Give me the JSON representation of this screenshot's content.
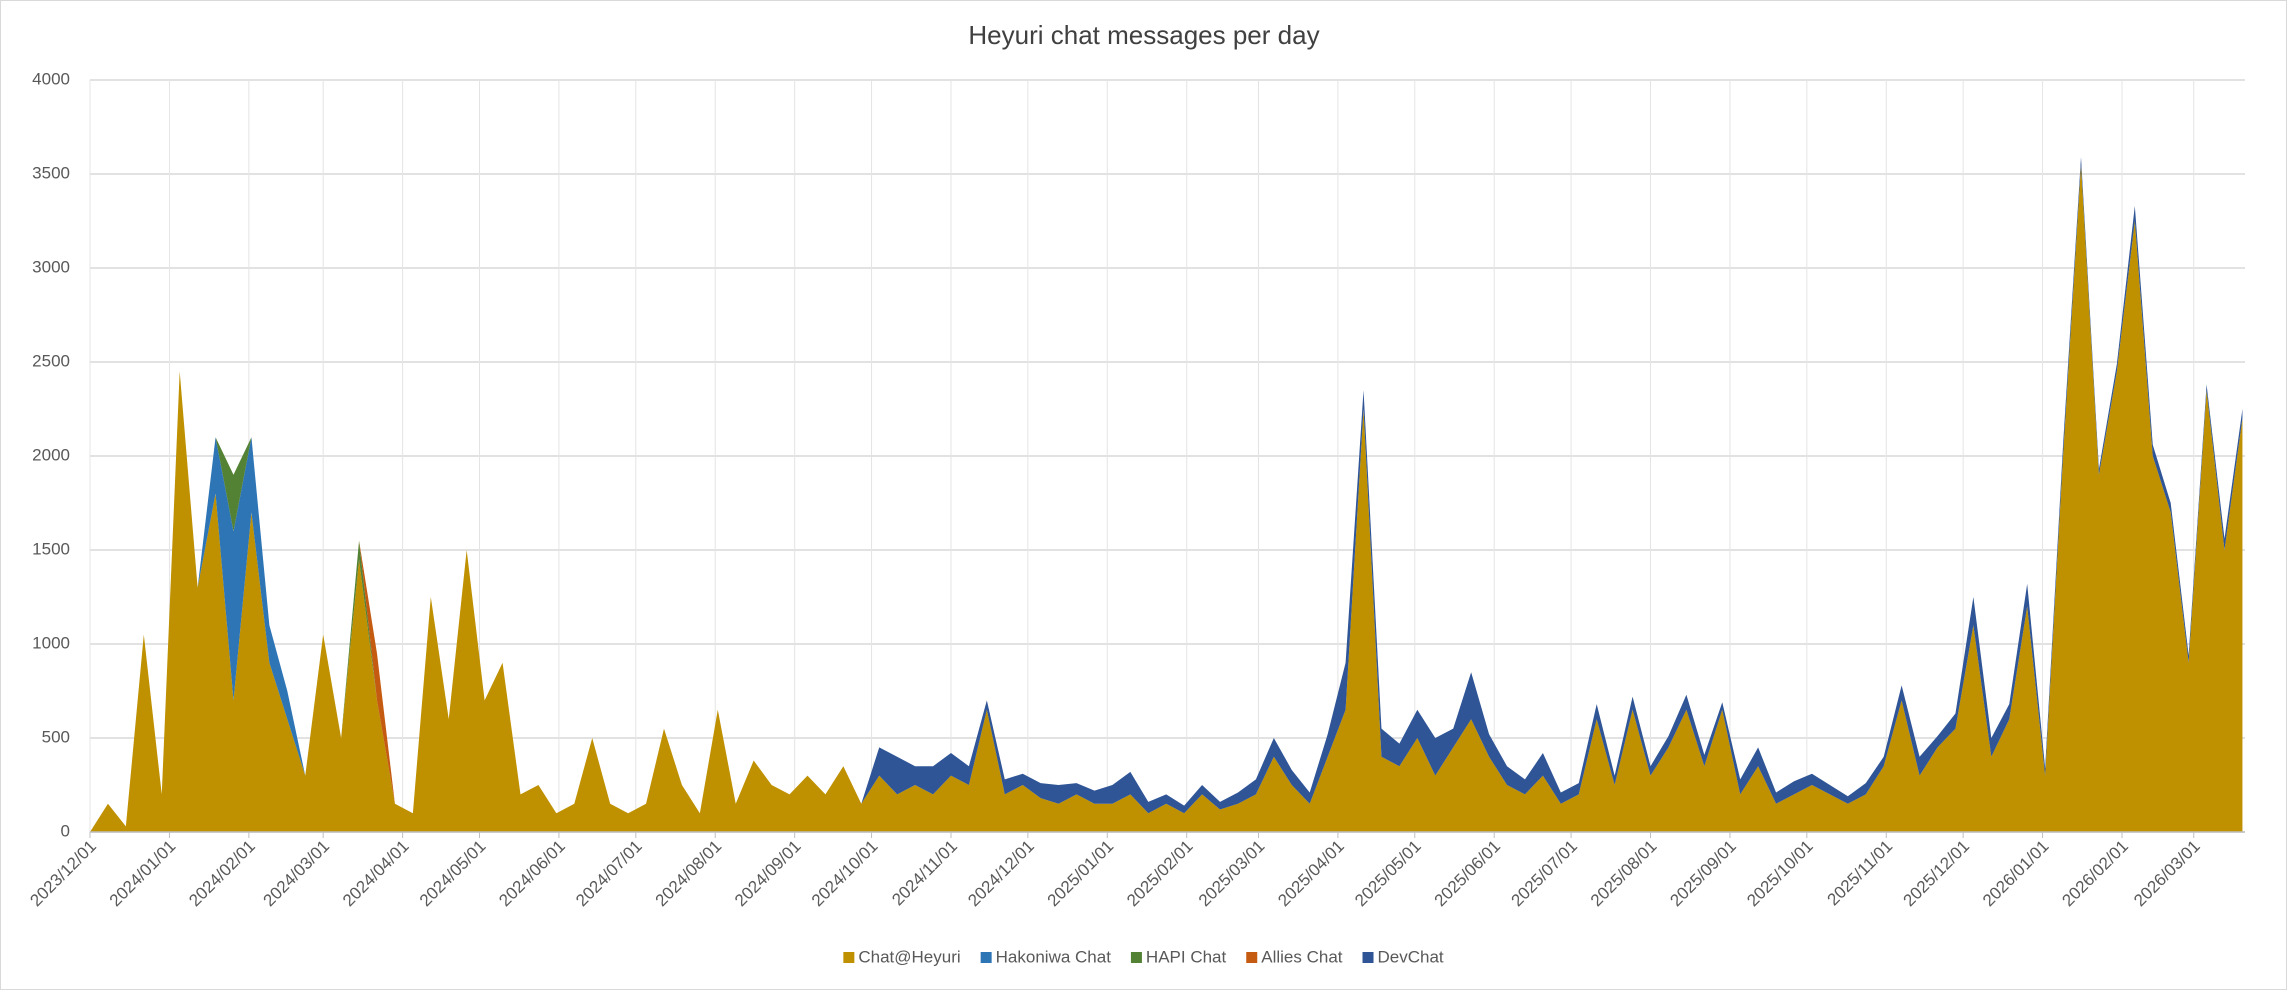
{
  "chart_data": {
    "type": "stacked-area",
    "title": "Heyuri chat messages per day",
    "x": [
      "2023/12/01",
      "2023/12/08",
      "2023/12/15",
      "2023/12/22",
      "2023/12/29",
      "2024/01/05",
      "2024/01/12",
      "2024/01/19",
      "2024/01/26",
      "2024/02/02",
      "2024/02/09",
      "2024/02/16",
      "2024/02/23",
      "2024/03/01",
      "2024/03/08",
      "2024/03/15",
      "2024/03/22",
      "2024/03/29",
      "2024/04/05",
      "2024/04/12",
      "2024/04/19",
      "2024/04/26",
      "2024/05/03",
      "2024/05/10",
      "2024/05/17",
      "2024/05/24",
      "2024/05/31",
      "2024/06/07",
      "2024/06/14",
      "2024/06/21",
      "2024/06/28",
      "2024/07/05",
      "2024/07/12",
      "2024/07/19",
      "2024/07/26",
      "2024/08/02",
      "2024/08/09",
      "2024/08/16",
      "2024/08/23",
      "2024/08/30",
      "2024/09/06",
      "2024/09/13",
      "2024/09/20",
      "2024/09/27",
      "2024/10/04",
      "2024/10/11",
      "2024/10/18",
      "2024/10/25",
      "2024/11/01",
      "2024/11/08",
      "2024/11/15",
      "2024/11/22",
      "2024/11/29",
      "2024/12/06",
      "2024/12/13",
      "2024/12/20",
      "2024/12/27",
      "2025/01/03",
      "2025/01/10",
      "2025/01/17",
      "2025/01/24",
      "2025/01/31",
      "2025/02/07",
      "2025/02/14",
      "2025/02/21",
      "2025/02/28",
      "2025/03/07",
      "2025/03/14",
      "2025/03/21",
      "2025/03/28",
      "2025/04/04",
      "2025/04/11",
      "2025/04/18",
      "2025/04/25",
      "2025/05/02",
      "2025/05/09",
      "2025/05/16",
      "2025/05/23",
      "2025/05/30",
      "2025/06/06",
      "2025/06/13",
      "2025/06/20",
      "2025/06/27",
      "2025/07/04",
      "2025/07/11",
      "2025/07/18",
      "2025/07/25",
      "2025/08/01",
      "2025/08/08",
      "2025/08/15",
      "2025/08/22",
      "2025/08/29",
      "2025/09/05",
      "2025/09/12",
      "2025/09/19",
      "2025/09/26",
      "2025/10/03",
      "2025/10/10",
      "2025/10/17",
      "2025/10/24",
      "2025/10/31",
      "2025/11/07",
      "2025/11/14",
      "2025/11/21",
      "2025/11/28",
      "2025/12/05",
      "2025/12/12",
      "2025/12/19",
      "2025/12/26",
      "2026/01/02",
      "2026/01/09",
      "2026/01/16",
      "2026/01/23",
      "2026/01/30",
      "2026/02/06",
      "2026/02/13",
      "2026/02/20",
      "2026/02/27",
      "2026/03/06",
      "2026/03/13",
      "2026/03/20"
    ],
    "series": [
      {
        "name": "Chat@Heyuri",
        "color": "#bf9000",
        "values": [
          0,
          150,
          30,
          1050,
          200,
          2450,
          1300,
          1800,
          700,
          1700,
          900,
          600,
          300,
          1050,
          500,
          1450,
          700,
          150,
          100,
          1250,
          600,
          1500,
          700,
          900,
          200,
          250,
          100,
          150,
          500,
          150,
          100,
          150,
          550,
          250,
          100,
          650,
          150,
          380,
          250,
          200,
          300,
          200,
          350,
          150,
          300,
          200,
          250,
          200,
          300,
          250,
          650,
          200,
          250,
          180,
          150,
          200,
          150,
          150,
          200,
          100,
          150,
          100,
          200,
          120,
          150,
          200,
          400,
          250,
          150,
          400,
          650,
          2250,
          400,
          350,
          500,
          300,
          450,
          600,
          400,
          250,
          200,
          300,
          150,
          200,
          600,
          250,
          650,
          300,
          450,
          650,
          350,
          650,
          200,
          350,
          150,
          200,
          250,
          200,
          150,
          200,
          350,
          700,
          300,
          450,
          550,
          1100,
          400,
          600,
          1200,
          300,
          2000,
          3550,
          1900,
          2450,
          3250,
          2000,
          1700,
          900,
          2350,
          1500,
          2200
        ]
      },
      {
        "name": "Hakoniwa Chat",
        "color": "#2e75b6",
        "values": [
          0,
          0,
          0,
          0,
          0,
          0,
          0,
          300,
          900,
          400,
          200,
          150,
          0,
          0,
          0,
          0,
          0,
          0,
          0,
          0,
          0,
          0,
          0,
          0,
          0,
          0,
          0,
          0,
          0,
          0,
          0,
          0,
          0,
          0,
          0,
          0,
          0,
          0,
          0,
          0,
          0,
          0,
          0,
          0,
          0,
          0,
          0,
          0,
          0,
          0,
          0,
          0,
          0,
          0,
          0,
          0,
          0,
          0,
          0,
          0,
          0,
          0,
          0,
          0,
          0,
          0,
          0,
          0,
          0,
          0,
          0,
          0,
          0,
          0,
          0,
          0,
          0,
          0,
          0,
          0,
          0,
          0,
          0,
          0,
          0,
          0,
          0,
          0,
          0,
          0,
          0,
          0,
          0,
          0,
          0,
          0,
          0,
          0,
          0,
          0,
          0,
          0,
          0,
          0,
          0,
          0,
          0,
          0,
          0,
          0,
          0,
          0,
          0,
          0,
          0,
          0,
          0,
          0,
          0,
          0,
          0
        ]
      },
      {
        "name": "HAPI Chat",
        "color": "#548235",
        "values": [
          0,
          0,
          0,
          0,
          0,
          0,
          0,
          0,
          300,
          0,
          0,
          0,
          0,
          0,
          0,
          100,
          0,
          0,
          0,
          0,
          0,
          0,
          0,
          0,
          0,
          0,
          0,
          0,
          0,
          0,
          0,
          0,
          0,
          0,
          0,
          0,
          0,
          0,
          0,
          0,
          0,
          0,
          0,
          0,
          0,
          0,
          0,
          0,
          0,
          0,
          0,
          0,
          0,
          0,
          0,
          0,
          0,
          0,
          0,
          0,
          0,
          0,
          0,
          0,
          0,
          0,
          0,
          0,
          0,
          0,
          0,
          0,
          0,
          0,
          0,
          0,
          0,
          0,
          0,
          0,
          0,
          0,
          0,
          0,
          0,
          0,
          0,
          0,
          0,
          0,
          0,
          0,
          0,
          0,
          0,
          0,
          0,
          0,
          0,
          0,
          0,
          0,
          0,
          0,
          0,
          0,
          0,
          0,
          0,
          0,
          0,
          0,
          0,
          0,
          0,
          0,
          0,
          0,
          0,
          0,
          0
        ]
      },
      {
        "name": "Allies Chat",
        "color": "#c55a11",
        "values": [
          0,
          0,
          0,
          0,
          0,
          0,
          0,
          0,
          0,
          0,
          0,
          0,
          0,
          0,
          0,
          0,
          250,
          0,
          0,
          0,
          0,
          0,
          0,
          0,
          0,
          0,
          0,
          0,
          0,
          0,
          0,
          0,
          0,
          0,
          0,
          0,
          0,
          0,
          0,
          0,
          0,
          0,
          0,
          0,
          0,
          0,
          0,
          0,
          0,
          0,
          0,
          0,
          0,
          0,
          0,
          0,
          0,
          0,
          0,
          0,
          0,
          0,
          0,
          0,
          0,
          0,
          0,
          0,
          0,
          0,
          0,
          0,
          0,
          0,
          0,
          0,
          0,
          0,
          0,
          0,
          0,
          0,
          0,
          0,
          0,
          0,
          0,
          0,
          0,
          0,
          0,
          0,
          0,
          0,
          0,
          0,
          0,
          0,
          0,
          0,
          0,
          0,
          0,
          0,
          0,
          0,
          0,
          0,
          0,
          0,
          0,
          0,
          0,
          0,
          0,
          0,
          0,
          0,
          0,
          0,
          0
        ]
      },
      {
        "name": "DevChat",
        "color": "#2f5597",
        "values": [
          0,
          0,
          0,
          0,
          0,
          0,
          0,
          0,
          0,
          0,
          0,
          0,
          0,
          0,
          0,
          0,
          0,
          0,
          0,
          0,
          0,
          0,
          0,
          0,
          0,
          0,
          0,
          0,
          0,
          0,
          0,
          0,
          0,
          0,
          0,
          0,
          0,
          0,
          0,
          0,
          0,
          0,
          0,
          0,
          150,
          200,
          100,
          150,
          120,
          100,
          50,
          80,
          60,
          80,
          100,
          60,
          70,
          100,
          120,
          60,
          50,
          40,
          50,
          40,
          60,
          80,
          100,
          80,
          60,
          120,
          250,
          100,
          150,
          120,
          150,
          200,
          100,
          250,
          120,
          100,
          80,
          120,
          60,
          60,
          80,
          50,
          70,
          50,
          60,
          80,
          60,
          40,
          80,
          100,
          60,
          70,
          60,
          50,
          40,
          60,
          50,
          80,
          100,
          60,
          80,
          150,
          100,
          80,
          120,
          40,
          60,
          40,
          30,
          40,
          80,
          60,
          50,
          40,
          30,
          60,
          50
        ]
      }
    ],
    "xlim": [
      "2023/12/01",
      "2026/03/21"
    ],
    "xticks": [
      "2023/12/01",
      "2024/01/01",
      "2024/02/01",
      "2024/03/01",
      "2024/04/01",
      "2024/05/01",
      "2024/06/01",
      "2024/07/01",
      "2024/08/01",
      "2024/09/01",
      "2024/10/01",
      "2024/11/01",
      "2024/12/01",
      "2025/01/01",
      "2025/02/01",
      "2025/03/01",
      "2025/04/01",
      "2025/05/01",
      "2025/06/01",
      "2025/07/01",
      "2025/08/01",
      "2025/09/01",
      "2025/10/01",
      "2025/11/01",
      "2025/12/01",
      "2026/01/01",
      "2026/02/01",
      "2026/03/01"
    ],
    "ylim": [
      0,
      4000
    ],
    "yticks": [
      0,
      500,
      1000,
      1500,
      2000,
      2500,
      3000,
      3500,
      4000
    ],
    "grid": true,
    "legend": "bottom"
  }
}
